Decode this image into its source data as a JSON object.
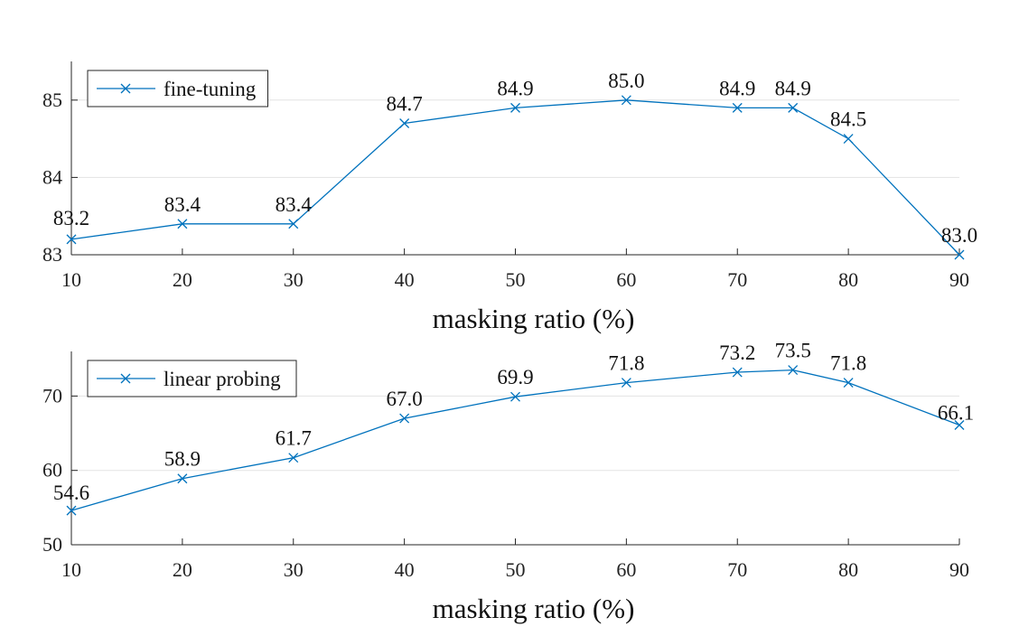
{
  "chart_data": [
    {
      "type": "line",
      "xlabel": "masking ratio (%)",
      "ylabel": "",
      "x": [
        10,
        20,
        30,
        40,
        50,
        60,
        70,
        75,
        80,
        90
      ],
      "x_ticks": [
        10,
        20,
        30,
        40,
        50,
        60,
        70,
        80,
        90
      ],
      "xlim": [
        10,
        90
      ],
      "ylim": [
        83,
        85.5
      ],
      "y_ticks": [
        83,
        84,
        85
      ],
      "grid": "horizontal",
      "legend_position": "top-left",
      "series": [
        {
          "name": "fine-tuning",
          "values": [
            83.2,
            83.4,
            83.4,
            84.7,
            84.9,
            85.0,
            84.9,
            84.9,
            84.5,
            83.0
          ],
          "labels": [
            "83.2",
            "83.4",
            "83.4",
            "84.7",
            "84.9",
            "85.0",
            "84.9",
            "84.9",
            "84.5",
            "83.0"
          ],
          "color": "#0072BD",
          "marker": "x"
        }
      ]
    },
    {
      "type": "line",
      "xlabel": "masking ratio (%)",
      "ylabel": "",
      "x": [
        10,
        20,
        30,
        40,
        50,
        60,
        70,
        75,
        80,
        90
      ],
      "x_ticks": [
        10,
        20,
        30,
        40,
        50,
        60,
        70,
        80,
        90
      ],
      "xlim": [
        10,
        90
      ],
      "ylim": [
        50,
        76
      ],
      "y_ticks": [
        50,
        60,
        70
      ],
      "grid": "horizontal",
      "legend_position": "top-left",
      "series": [
        {
          "name": "linear probing",
          "values": [
            54.6,
            58.9,
            61.7,
            67.0,
            69.9,
            71.8,
            73.2,
            73.5,
            71.8,
            66.1
          ],
          "labels": [
            "54.6",
            "58.9",
            "61.7",
            "67.0",
            "69.9",
            "71.8",
            "73.2",
            "73.5",
            "71.8",
            "66.1"
          ],
          "color": "#0072BD",
          "marker": "x"
        }
      ]
    }
  ]
}
